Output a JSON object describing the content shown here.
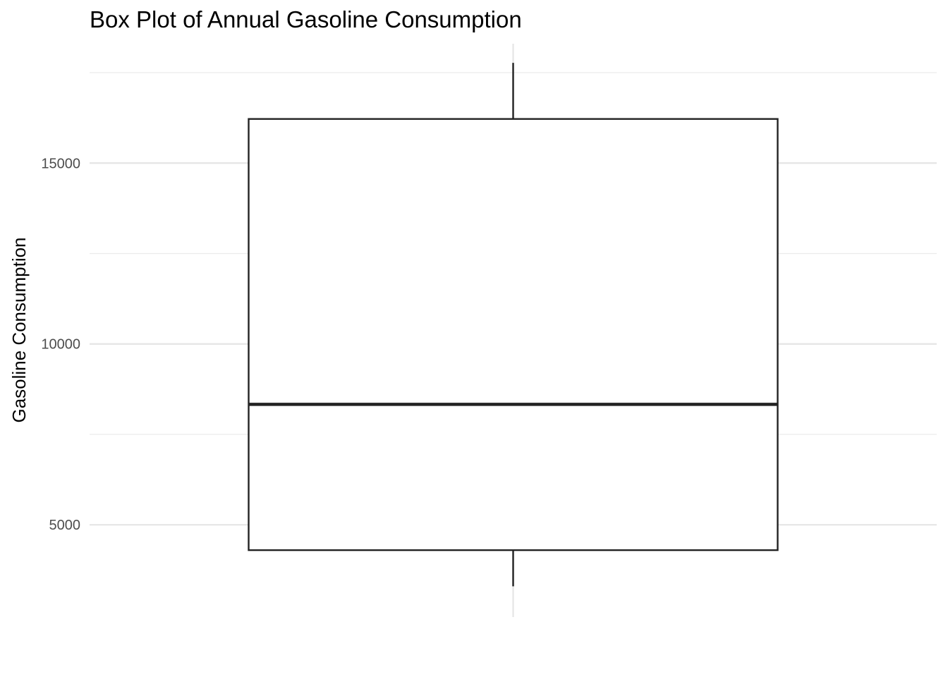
{
  "chart_data": {
    "type": "box",
    "title": "Box Plot of Annual Gasoline Consumption",
    "xlabel": "",
    "ylabel": "Gasoline Consumption",
    "ylim": [
      2450,
      18300
    ],
    "yticks": [
      {
        "value": 5000,
        "label": "5000"
      },
      {
        "value": 10000,
        "label": "10000"
      },
      {
        "value": 15000,
        "label": "15000"
      }
    ],
    "minor_gridlines": [
      7500,
      12500,
      17500
    ],
    "grid": true,
    "series": [
      {
        "name": "Gasoline Consumption",
        "min": 3300,
        "q1": 4300,
        "median": 8330,
        "q3": 16220,
        "max": 17770
      }
    ]
  }
}
